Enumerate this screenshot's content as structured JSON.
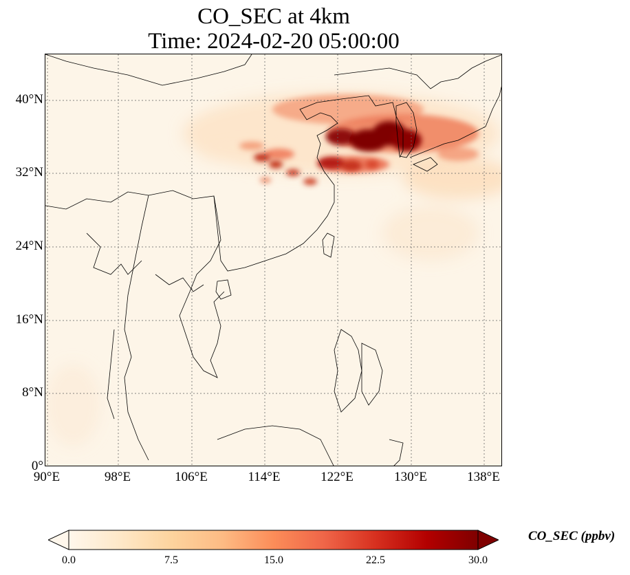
{
  "title": {
    "line1": "CO_SEC at 4km",
    "line2": "Time: 2024-02-20 05:00:00"
  },
  "map": {
    "projection": "PlateCarree",
    "extent": {
      "lon_min": 89.8,
      "lon_max": 139.5,
      "lat_min": 0,
      "lat_max": 45
    },
    "grid_lines": "dotted",
    "lon_ticks": [
      "90°E",
      "98°E",
      "106°E",
      "114°E",
      "122°E",
      "130°E",
      "138°E"
    ],
    "lat_ticks": [
      "0°",
      "8°N",
      "16°N",
      "24°N",
      "32°N",
      "40°N"
    ],
    "field": "CO_SEC",
    "units": "ppbv"
  },
  "colorbar": {
    "label": "CO_SEC (ppbv)",
    "colormap": "OrRd",
    "colors": [
      "#fff7ec",
      "#fee8c8",
      "#fdd49e",
      "#fdbb84",
      "#fc8d59",
      "#ef6548",
      "#d7301f",
      "#b30000",
      "#7f0000"
    ],
    "ticks": [
      "0.0",
      "7.5",
      "15.0",
      "22.5",
      "30.0"
    ],
    "min": 0.0,
    "max": 30.0,
    "extend": "both"
  }
}
